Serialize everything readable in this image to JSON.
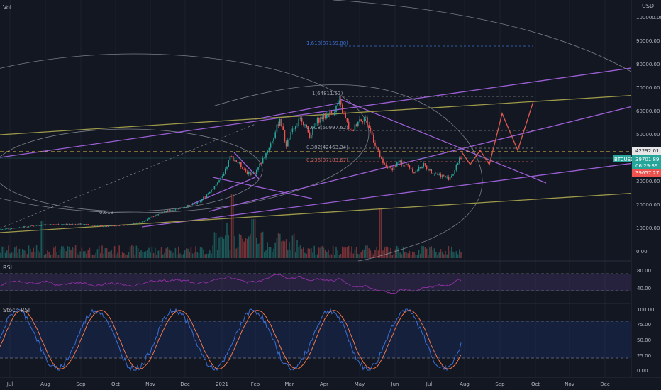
{
  "header": {
    "vol_label": "Vol",
    "currency": "USD"
  },
  "panes": {
    "rsi_label": "RSI",
    "stoch_label": "Stoch RSI"
  },
  "price_axis": {
    "ticks": [
      "100000.00",
      "90000.00",
      "80000.00",
      "70000.00",
      "60000.00",
      "50000.00",
      "40000.00",
      "30000.00",
      "20000.00",
      "10000.00",
      "0.00"
    ],
    "current_price": "42292.01",
    "symbol_tag": "BTCUSD",
    "symbol_price": "39701.89",
    "countdown": "06:29:39",
    "low_price": "39657.27"
  },
  "rsi_axis": {
    "ticks": [
      "80.00",
      "40.00"
    ]
  },
  "stoch_axis": {
    "ticks": [
      "100.00",
      "75.00",
      "50.00",
      "25.00",
      "0.00"
    ]
  },
  "time_axis": [
    "Jul",
    "Aug",
    "Sep",
    "Oct",
    "Nov",
    "Dec",
    "2021",
    "Feb",
    "Mar",
    "Apr",
    "May",
    "Jun",
    "Jul",
    "Aug",
    "Sep",
    "Oct",
    "Nov",
    "Dec"
  ],
  "fib_labels": {
    "ext_1618": "1.618(87159.80)",
    "level_1": "1(64811.57)",
    "level_0618": "0.618(50997.62)",
    "level_0382": "0.382(42463.34)",
    "level_0236": "0.236(37183.67)",
    "circle_0618": "0.618"
  },
  "colors": {
    "background": "#131722",
    "up": "#26a69a",
    "down": "#ef5350",
    "purple": "#9c5fd6",
    "olive": "#9e9a4a",
    "projection": "#e05a4f",
    "rsi_line": "#8a2f9e",
    "stoch_k": "#3b6fd6",
    "stoch_d": "#f2764b",
    "price_tag": "#e6e6e6"
  },
  "chart_data": {
    "type": "candlestick",
    "ylim": [
      0,
      105000
    ],
    "months": [
      "Jul",
      "Aug",
      "Sep",
      "Oct",
      "Nov",
      "Dec",
      "2021",
      "Feb",
      "Mar",
      "Apr",
      "May",
      "Jun",
      "Jul",
      "Aug",
      "Sep",
      "Oct",
      "Nov",
      "Dec"
    ],
    "monthly_close": [
      11300,
      11600,
      10800,
      13800,
      19700,
      29000,
      33100,
      45100,
      58800,
      57700,
      37300,
      35000,
      41500
    ],
    "key_levels": {
      "ath": 64811.57,
      "fib_1618": 87159.8,
      "fib_0618": 50997.62,
      "fib_0382": 42463.34,
      "fib_0236": 37183.67,
      "last": 39701.89
    }
  }
}
